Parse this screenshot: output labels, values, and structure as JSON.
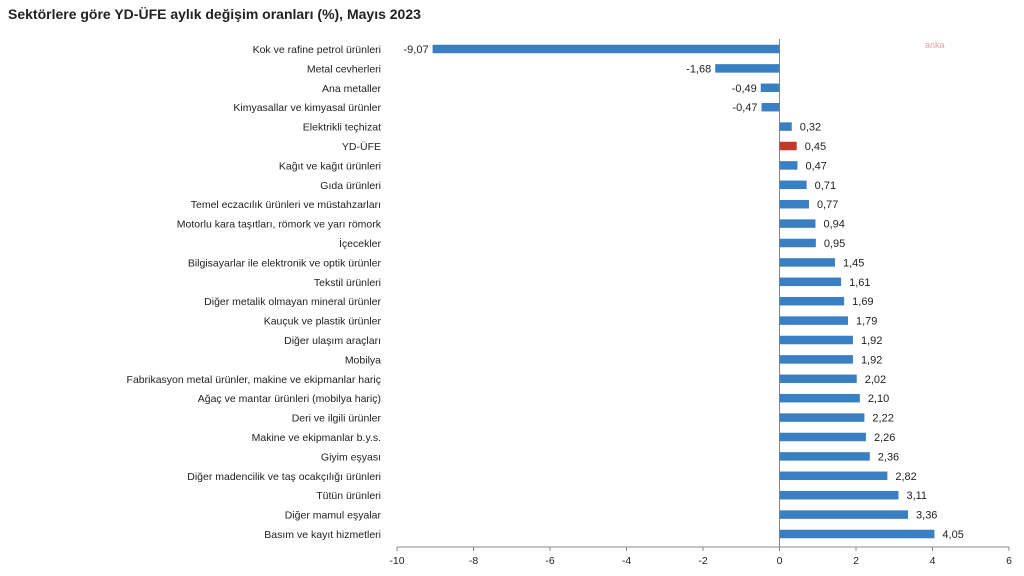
{
  "chart_data": {
    "type": "bar",
    "orientation": "horizontal",
    "title": "Sektörlere göre YD-ÜFE aylık değişim oranları (%), Mayıs 2023",
    "categories": [
      "Kok ve rafine petrol ürünleri",
      "Metal cevherleri",
      "Ana metaller",
      "Kimyasallar ve kimyasal ürünler",
      "Elektrikli teçhizat",
      "YD-ÜFE",
      "Kağıt ve kağıt ürünleri",
      "Gıda ürünleri",
      "Temel eczacılık ürünleri ve müstahzarları",
      "Motorlu kara taşıtları, römork ve yarı römork",
      "İçecekler",
      "Bilgisayarlar ile elektronik ve optik ürünler",
      "Tekstil ürünleri",
      "Diğer metalik olmayan mineral ürünler",
      "Kauçuk ve plastik ürünler",
      "Diğer ulaşım araçları",
      "Mobilya",
      "Fabrikasyon metal ürünler, makine ve ekipmanlar hariç",
      "Ağaç ve mantar ürünleri (mobilya hariç)",
      "Deri ve ilgili ürünler",
      "Makine ve ekipmanlar b.y.s.",
      "Giyim eşyası",
      "Diğer madencilik ve taş ocakçılığı ürünleri",
      "Tütün ürünleri",
      "Diğer mamul eşyalar",
      "Basım ve kayıt hizmetleri"
    ],
    "values": [
      -9.07,
      -1.68,
      -0.49,
      -0.47,
      0.32,
      0.45,
      0.47,
      0.71,
      0.77,
      0.94,
      0.95,
      1.45,
      1.61,
      1.69,
      1.79,
      1.92,
      1.92,
      2.02,
      2.1,
      2.22,
      2.26,
      2.36,
      2.82,
      3.11,
      3.36,
      4.05
    ],
    "value_labels": [
      "-9,07",
      "-1,68",
      "-0,49",
      "-0,47",
      "0,32",
      "0,45",
      "0,47",
      "0,71",
      "0,77",
      "0,94",
      "0,95",
      "1,45",
      "1,61",
      "1,69",
      "1,79",
      "1,92",
      "1,92",
      "2,02",
      "2,10",
      "2,22",
      "2,26",
      "2,36",
      "2,82",
      "3,11",
      "3,36",
      "4,05"
    ],
    "highlight_index": 5,
    "xlim": [
      -10,
      6
    ],
    "xticks": [
      -10,
      -8,
      -6,
      -4,
      -2,
      0,
      2,
      4,
      6
    ],
    "xtick_labels": [
      "-10",
      "-8",
      "-6",
      "-4",
      "-2",
      "0",
      "2",
      "4",
      "6"
    ],
    "xlabel": "",
    "ylabel": "",
    "grid": false,
    "colors": {
      "bar": "#3a7fc2",
      "highlight": "#c0392b",
      "axis": "#888888",
      "text": "#222222"
    }
  },
  "watermark": "anka"
}
